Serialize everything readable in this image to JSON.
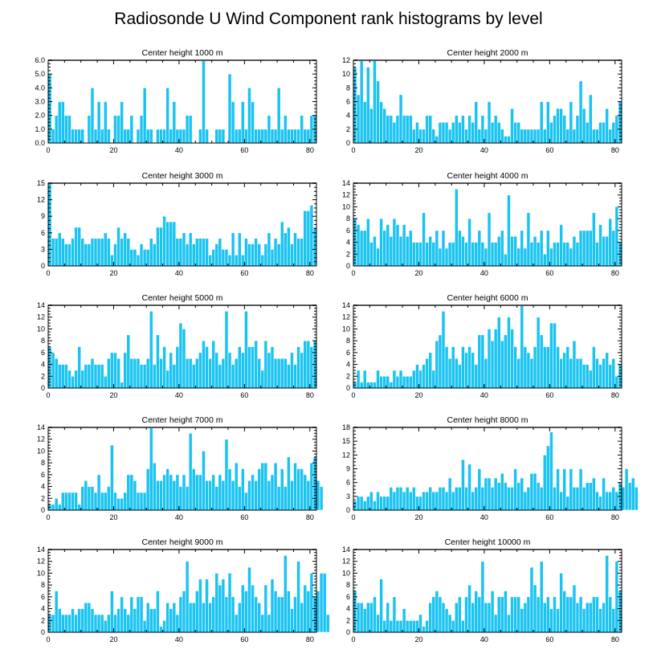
{
  "figure": {
    "title": "Radiosonde U Wind Component rank histograms by level"
  },
  "chart_data": [
    {
      "type": "bar",
      "title": "Center height 1000 m",
      "xlim": [
        0,
        82
      ],
      "ylim": [
        0,
        6
      ],
      "yticks": [
        "0.0",
        "1.0",
        "2.0",
        "3.0",
        "4.0",
        "5.0",
        "6.0"
      ],
      "xticks": [
        0,
        20,
        40,
        60,
        80
      ],
      "values": [
        5,
        1,
        2,
        3,
        3,
        2,
        2,
        1,
        1,
        1,
        1,
        0,
        2,
        4,
        1,
        3,
        1,
        3,
        1,
        0,
        2,
        2,
        3,
        1,
        1,
        2,
        0,
        1,
        2,
        4,
        1,
        1,
        0,
        1,
        1,
        1,
        4,
        1,
        3,
        1,
        1,
        1,
        2,
        2,
        0,
        0,
        1,
        6,
        1,
        0,
        0,
        1,
        1,
        1,
        0,
        5,
        3,
        1,
        1,
        3,
        1,
        4,
        3,
        1,
        1,
        1,
        1,
        2,
        1,
        1,
        4,
        1,
        2,
        1,
        1,
        1,
        1,
        2,
        1,
        1,
        2,
        2
      ]
    },
    {
      "type": "bar",
      "title": "Center height 2000 m",
      "xlim": [
        0,
        82
      ],
      "ylim": [
        0,
        12
      ],
      "yticks": [
        "0",
        "2",
        "4",
        "6",
        "8",
        "10",
        "12"
      ],
      "xticks": [
        0,
        20,
        40,
        60,
        80
      ],
      "values": [
        11,
        7,
        12,
        6,
        11,
        5,
        12,
        9,
        6,
        5,
        4,
        4,
        3,
        4,
        7,
        4,
        4,
        4,
        2,
        3,
        2,
        2,
        4,
        4,
        2,
        1,
        3,
        3,
        3,
        2,
        3,
        4,
        3,
        4,
        2,
        4,
        3,
        6,
        2,
        4,
        2,
        6,
        3,
        4,
        3,
        2,
        1,
        1,
        5,
        3,
        3,
        2,
        2,
        2,
        2,
        2,
        2,
        6,
        2,
        6,
        3,
        4,
        5,
        5,
        4,
        2,
        6,
        2,
        4,
        9,
        5,
        3,
        7,
        2,
        2,
        3,
        3,
        5,
        2,
        3,
        4,
        6
      ]
    },
    {
      "type": "bar",
      "title": "Center height 3000 m",
      "xlim": [
        0,
        82
      ],
      "ylim": [
        0,
        15
      ],
      "yticks": [
        "0",
        "3",
        "6",
        "9",
        "12",
        "15"
      ],
      "xticks": [
        0,
        20,
        40,
        60,
        80
      ],
      "values": [
        15,
        5,
        5,
        6,
        5,
        4,
        4,
        5,
        7,
        7,
        5,
        4,
        4,
        5,
        5,
        5,
        5,
        6,
        5,
        2,
        4,
        7,
        5,
        6,
        5,
        3,
        3,
        2,
        4,
        3,
        3,
        5,
        4,
        7,
        7,
        9,
        8,
        8,
        8,
        5,
        5,
        6,
        4,
        6,
        4,
        5,
        5,
        5,
        5,
        2,
        3,
        4,
        5,
        3,
        3,
        2,
        6,
        2,
        6,
        2,
        5,
        4,
        4,
        5,
        4,
        2,
        4,
        6,
        3,
        5,
        4,
        8,
        6,
        7,
        4,
        6,
        5,
        5,
        10,
        10,
        11,
        7
      ]
    },
    {
      "type": "bar",
      "title": "Center height 4000 m",
      "xlim": [
        0,
        82
      ],
      "ylim": [
        0,
        14
      ],
      "yticks": [
        "0",
        "2",
        "4",
        "6",
        "8",
        "10",
        "12",
        "14"
      ],
      "xticks": [
        0,
        20,
        40,
        60,
        80
      ],
      "values": [
        8,
        7,
        6,
        6,
        8,
        4,
        5,
        3,
        8,
        6,
        7,
        5,
        8,
        7,
        5,
        7,
        5,
        6,
        4,
        4,
        4,
        9,
        4,
        5,
        4,
        6,
        3,
        6,
        3,
        4,
        4,
        13,
        6,
        5,
        4,
        8,
        4,
        4,
        6,
        4,
        3,
        9,
        4,
        4,
        5,
        6,
        2,
        12,
        5,
        5,
        3,
        6,
        3,
        9,
        4,
        5,
        4,
        6,
        2,
        6,
        3,
        4,
        4,
        7,
        4,
        4,
        3,
        5,
        4,
        6,
        6,
        6,
        6,
        9,
        4,
        7,
        5,
        5,
        8,
        6,
        10,
        4
      ]
    },
    {
      "type": "bar",
      "title": "Center height 5000 m",
      "xlim": [
        0,
        82
      ],
      "ylim": [
        0,
        14
      ],
      "yticks": [
        "0",
        "2",
        "4",
        "6",
        "8",
        "10",
        "12",
        "14"
      ],
      "xticks": [
        0,
        20,
        40,
        60,
        80
      ],
      "values": [
        7,
        6,
        5,
        4,
        4,
        4,
        3,
        2,
        3,
        7,
        3,
        4,
        4,
        5,
        4,
        4,
        4,
        2,
        5,
        6,
        6,
        5,
        1,
        6,
        9,
        5,
        5,
        5,
        4,
        4,
        5,
        13,
        4,
        9,
        5,
        7,
        3,
        6,
        4,
        7,
        11,
        10,
        5,
        5,
        4,
        5,
        6,
        8,
        7,
        5,
        8,
        6,
        4,
        5,
        13,
        6,
        4,
        5,
        7,
        6,
        13,
        7,
        7,
        8,
        5,
        3,
        8,
        6,
        7,
        5,
        5,
        5,
        5,
        4,
        6,
        4,
        7,
        6,
        8,
        8,
        7,
        8
      ]
    },
    {
      "type": "bar",
      "title": "Center height 6000 m",
      "xlim": [
        0,
        82
      ],
      "ylim": [
        0,
        14
      ],
      "yticks": [
        "0",
        "2",
        "4",
        "6",
        "8",
        "10",
        "12",
        "14"
      ],
      "xticks": [
        0,
        20,
        40,
        60,
        80
      ],
      "values": [
        1,
        3,
        1,
        3,
        1,
        1,
        1,
        3,
        2,
        2,
        2,
        1,
        3,
        2,
        3,
        2,
        2,
        2,
        3,
        4,
        3,
        4,
        5,
        6,
        3,
        8,
        9,
        13,
        7,
        5,
        7,
        5,
        4,
        7,
        6,
        7,
        6,
        4,
        9,
        9,
        5,
        10,
        8,
        10,
        12,
        8,
        9,
        12,
        10,
        7,
        5,
        14,
        7,
        6,
        5,
        7,
        12,
        9,
        7,
        7,
        11,
        11,
        7,
        5,
        6,
        7,
        5,
        8,
        5,
        5,
        4,
        4,
        3,
        7,
        5,
        4,
        5,
        6,
        4,
        5,
        2,
        4
      ]
    },
    {
      "type": "bar",
      "title": "Center height 7000 m",
      "xlim": [
        0,
        82
      ],
      "ylim": [
        0,
        14
      ],
      "yticks": [
        "0",
        "2",
        "4",
        "6",
        "8",
        "10",
        "12",
        "14"
      ],
      "xticks": [
        0,
        20,
        40,
        60,
        80
      ],
      "values": [
        1,
        1,
        2,
        1,
        3,
        3,
        3,
        3,
        3,
        1,
        4,
        5,
        4,
        4,
        3,
        6,
        3,
        3,
        4,
        11,
        3,
        2,
        2,
        3,
        6,
        6,
        5,
        3,
        3,
        3,
        7,
        14,
        8,
        5,
        5,
        6,
        7,
        6,
        5,
        6,
        4,
        6,
        4,
        13,
        7,
        6,
        6,
        10,
        5,
        5,
        6,
        4,
        6,
        5,
        12,
        7,
        5,
        8,
        4,
        7,
        3,
        5,
        6,
        5,
        7,
        8,
        8,
        5,
        6,
        8,
        4,
        7,
        4,
        9,
        5,
        8,
        7,
        7,
        6,
        5,
        8,
        9,
        5,
        4
      ]
    },
    {
      "type": "bar",
      "title": "Center height 8000 m",
      "xlim": [
        0,
        82
      ],
      "ylim": [
        0,
        18
      ],
      "yticks": [
        "0",
        "3",
        "6",
        "9",
        "12",
        "15",
        "18"
      ],
      "xticks": [
        0,
        20,
        40,
        60,
        80
      ],
      "values": [
        2,
        3,
        3,
        2,
        3,
        4,
        2,
        4,
        3,
        3,
        3,
        5,
        4,
        5,
        5,
        4,
        5,
        4,
        5,
        3,
        3,
        4,
        4,
        5,
        4,
        4,
        5,
        5,
        4,
        7,
        4,
        5,
        5,
        11,
        5,
        10,
        4,
        5,
        9,
        5,
        7,
        7,
        5,
        7,
        6,
        8,
        6,
        5,
        5,
        9,
        6,
        7,
        4,
        5,
        8,
        8,
        6,
        5,
        12,
        14,
        17,
        5,
        9,
        4,
        9,
        3,
        9,
        5,
        5,
        9,
        5,
        6,
        6,
        7,
        4,
        3,
        7,
        4,
        4,
        5,
        4,
        6,
        5,
        9,
        6,
        7,
        5
      ]
    },
    {
      "type": "bar",
      "title": "Center height 9000 m",
      "xlim": [
        0,
        82
      ],
      "ylim": [
        0,
        14
      ],
      "yticks": [
        "0",
        "2",
        "4",
        "6",
        "8",
        "10",
        "12",
        "14"
      ],
      "xticks": [
        0,
        20,
        40,
        60,
        80
      ],
      "values": [
        3,
        3,
        7,
        4,
        3,
        3,
        3,
        4,
        3,
        4,
        4,
        5,
        5,
        4,
        3,
        3,
        3,
        2,
        3,
        7,
        3,
        4,
        6,
        4,
        3,
        6,
        4,
        6,
        6,
        2,
        5,
        4,
        4,
        7,
        1,
        2,
        5,
        4,
        5,
        3,
        6,
        7,
        12,
        5,
        5,
        7,
        9,
        5,
        9,
        5,
        6,
        10,
        8,
        9,
        6,
        10,
        6,
        3,
        5,
        8,
        7,
        11,
        8,
        6,
        5,
        3,
        8,
        3,
        9,
        7,
        6,
        6,
        13,
        7,
        4,
        6,
        12,
        5,
        8,
        7,
        10,
        6,
        7,
        10,
        10,
        3
      ]
    },
    {
      "type": "bar",
      "title": "Center height 10000 m",
      "xlim": [
        0,
        82
      ],
      "ylim": [
        0,
        14
      ],
      "yticks": [
        "0",
        "2",
        "4",
        "6",
        "8",
        "10",
        "12",
        "14"
      ],
      "xticks": [
        0,
        20,
        40,
        60,
        80
      ],
      "values": [
        7,
        5,
        5,
        4,
        5,
        5,
        6,
        3,
        9,
        2,
        5,
        2,
        6,
        2,
        2,
        4,
        2,
        2,
        2,
        2,
        3,
        1,
        2,
        5,
        6,
        7,
        6,
        5,
        4,
        3,
        2,
        5,
        6,
        2,
        6,
        8,
        5,
        7,
        6,
        12,
        5,
        5,
        7,
        3,
        6,
        6,
        7,
        3,
        6,
        6,
        6,
        4,
        5,
        6,
        11,
        8,
        6,
        12,
        5,
        6,
        4,
        6,
        4,
        10,
        7,
        6,
        6,
        8,
        5,
        6,
        4,
        5,
        5,
        6,
        6,
        4,
        5,
        13,
        6,
        4,
        12,
        7
      ]
    }
  ]
}
